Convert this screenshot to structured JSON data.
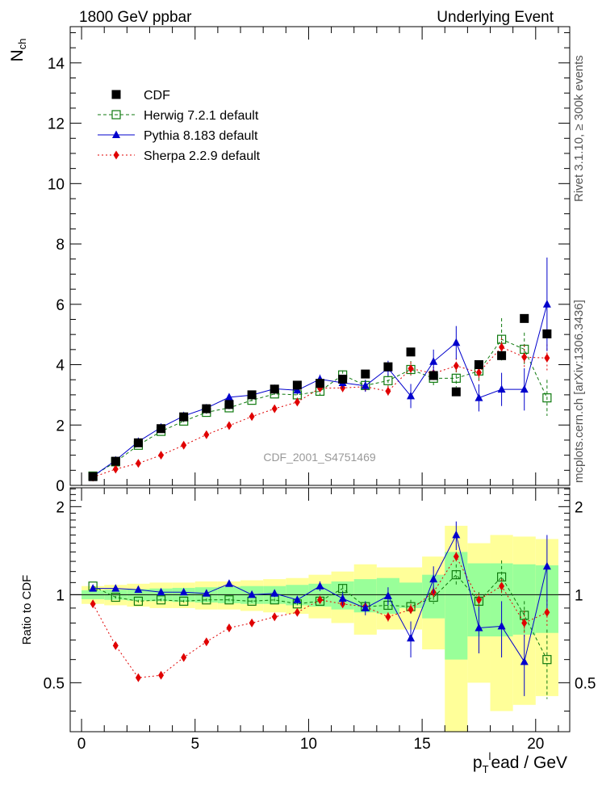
{
  "header": {
    "title_left": "1800 GeV ppbar",
    "title_right": "Underlying Event"
  },
  "side_labels": {
    "top": "Rivet 3.1.10, ≥ 300k events",
    "bottom": "mcplots.cern.ch [arXiv:1306.3436]"
  },
  "watermark": "CDF_2001_S4751469",
  "chart_data": [
    {
      "type": "scatter",
      "panel": "main",
      "ylabel_main": "N",
      "ylabel_sub": "ch",
      "xlim": [
        -0.5,
        21.5
      ],
      "ylim": [
        0,
        15.2
      ],
      "yticks": [
        0,
        2,
        4,
        6,
        8,
        10,
        12,
        14
      ],
      "x": [
        0.5,
        1.5,
        2.5,
        3.5,
        4.5,
        5.5,
        6.5,
        7.5,
        8.5,
        9.5,
        10.5,
        11.5,
        12.5,
        13.5,
        14.5,
        15.5,
        16.5,
        17.5,
        18.5,
        19.5,
        20.5
      ],
      "legend": [
        {
          "key": "cdf",
          "label": "CDF"
        },
        {
          "key": "herwig",
          "label": "Herwig 7.2.1 default"
        },
        {
          "key": "pythia",
          "label": "Pythia 8.183 default"
        },
        {
          "key": "sherpa",
          "label": "Sherpa 2.2.9 default"
        }
      ],
      "series": [
        {
          "key": "cdf",
          "name": "CDF",
          "color": "#000000",
          "values": [
            0.29,
            0.8,
            1.41,
            1.88,
            2.27,
            2.54,
            2.68,
            3.0,
            3.19,
            3.32,
            3.38,
            3.52,
            3.69,
            3.93,
            4.42,
            3.64,
            3.1,
            4.0,
            4.3,
            5.53,
            5.02
          ]
        },
        {
          "key": "herwig",
          "name": "Herwig 7.2.1 default",
          "color": "#0f7a0f",
          "values": [
            0.31,
            0.78,
            1.33,
            1.79,
            2.13,
            2.42,
            2.57,
            2.82,
            3.03,
            3.0,
            3.12,
            3.66,
            3.31,
            3.47,
            3.84,
            3.55,
            3.55,
            3.79,
            4.84,
            4.51,
            2.9
          ],
          "errors": [
            0.02,
            0.02,
            0.03,
            0.03,
            0.04,
            0.05,
            0.06,
            0.07,
            0.08,
            0.1,
            0.12,
            0.15,
            0.18,
            0.22,
            0.28,
            0.25,
            0.3,
            0.35,
            0.7,
            0.55,
            0.6
          ]
        },
        {
          "key": "pythia",
          "name": "Pythia 8.183 default",
          "color": "#0000cc",
          "values": [
            0.3,
            0.83,
            1.45,
            1.92,
            2.3,
            2.56,
            2.92,
            2.99,
            3.2,
            3.15,
            3.52,
            3.4,
            3.3,
            3.88,
            2.96,
            4.1,
            4.73,
            2.9,
            3.18,
            3.18,
            6.0
          ],
          "errors": [
            0.02,
            0.02,
            0.03,
            0.04,
            0.05,
            0.06,
            0.07,
            0.08,
            0.1,
            0.12,
            0.15,
            0.18,
            0.2,
            0.25,
            0.4,
            0.4,
            0.55,
            0.45,
            0.55,
            0.7,
            1.55
          ]
        },
        {
          "key": "sherpa",
          "name": "Sherpa 2.2.9 default",
          "color": "#e00000",
          "values": [
            0.27,
            0.54,
            0.73,
            1.0,
            1.33,
            1.68,
            1.98,
            2.28,
            2.54,
            2.76,
            3.22,
            3.23,
            3.27,
            3.12,
            3.87,
            3.71,
            3.96,
            3.74,
            4.58,
            4.25,
            4.22
          ],
          "errors": [
            0.01,
            0.02,
            0.02,
            0.03,
            0.04,
            0.05,
            0.06,
            0.07,
            0.08,
            0.1,
            0.12,
            0.14,
            0.15,
            0.18,
            0.22,
            0.22,
            0.25,
            0.28,
            0.3,
            0.4,
            0.45
          ]
        }
      ]
    },
    {
      "type": "scatter",
      "panel": "ratio",
      "ylabel": "Ratio to CDF",
      "xlabel_main": "p",
      "xlabel_sub": "T",
      "xlabel_sup": "l",
      "xlabel_rest": "ead / GeV",
      "xlim": [
        -0.5,
        21.5
      ],
      "ylim": [
        0.34,
        2.32
      ],
      "yticks": [
        0.5,
        1,
        2
      ],
      "xticks": [
        0,
        5,
        10,
        15,
        20
      ],
      "x": [
        0.5,
        1.5,
        2.5,
        3.5,
        4.5,
        5.5,
        6.5,
        7.5,
        8.5,
        9.5,
        10.5,
        11.5,
        12.5,
        13.5,
        14.5,
        15.5,
        16.5,
        17.5,
        18.5,
        19.5,
        20.5
      ],
      "band_stat": [
        0.035,
        0.04,
        0.045,
        0.05,
        0.055,
        0.06,
        0.065,
        0.07,
        0.07,
        0.08,
        0.09,
        0.11,
        0.13,
        0.14,
        0.1,
        0.17,
        0.4,
        0.28,
        0.28,
        0.27,
        0.26
      ],
      "band_total": [
        0.07,
        0.08,
        0.09,
        0.1,
        0.1,
        0.11,
        0.11,
        0.12,
        0.13,
        0.14,
        0.17,
        0.2,
        0.27,
        0.24,
        0.24,
        0.35,
        0.72,
        0.5,
        0.6,
        0.58,
        0.55
      ],
      "series": [
        {
          "key": "herwig",
          "values": [
            1.07,
            0.98,
            0.95,
            0.96,
            0.95,
            0.96,
            0.96,
            0.95,
            0.96,
            0.93,
            0.95,
            1.05,
            0.91,
            0.92,
            0.91,
            0.98,
            1.17,
            0.95,
            1.15,
            0.85,
            0.6
          ],
          "errors": [
            0.01,
            0.01,
            0.01,
            0.01,
            0.01,
            0.01,
            0.01,
            0.01,
            0.01,
            0.01,
            0.02,
            0.03,
            0.03,
            0.04,
            0.05,
            0.05,
            0.1,
            0.07,
            0.16,
            0.1,
            0.16
          ]
        },
        {
          "key": "pythia",
          "values": [
            1.05,
            1.05,
            1.04,
            1.02,
            1.02,
            1.01,
            1.09,
            1.0,
            1.01,
            0.96,
            1.07,
            0.97,
            0.9,
            0.99,
            0.71,
            1.13,
            1.6,
            0.77,
            0.78,
            0.59,
            1.25
          ],
          "errors": [
            0.01,
            0.01,
            0.01,
            0.01,
            0.01,
            0.02,
            0.02,
            0.02,
            0.03,
            0.03,
            0.04,
            0.05,
            0.05,
            0.07,
            0.1,
            0.12,
            0.18,
            0.14,
            0.17,
            0.14,
            0.35
          ]
        },
        {
          "key": "sherpa",
          "values": [
            0.93,
            0.67,
            0.52,
            0.53,
            0.61,
            0.69,
            0.77,
            0.8,
            0.84,
            0.87,
            0.96,
            0.93,
            0.91,
            0.84,
            0.89,
            1.02,
            1.35,
            0.96,
            1.07,
            0.8,
            0.87
          ],
          "errors": [
            0.005,
            0.005,
            0.005,
            0.006,
            0.007,
            0.008,
            0.01,
            0.01,
            0.01,
            0.012,
            0.015,
            0.02,
            0.025,
            0.03,
            0.04,
            0.04,
            0.05,
            0.05,
            0.06,
            0.08,
            0.09
          ]
        }
      ]
    }
  ]
}
